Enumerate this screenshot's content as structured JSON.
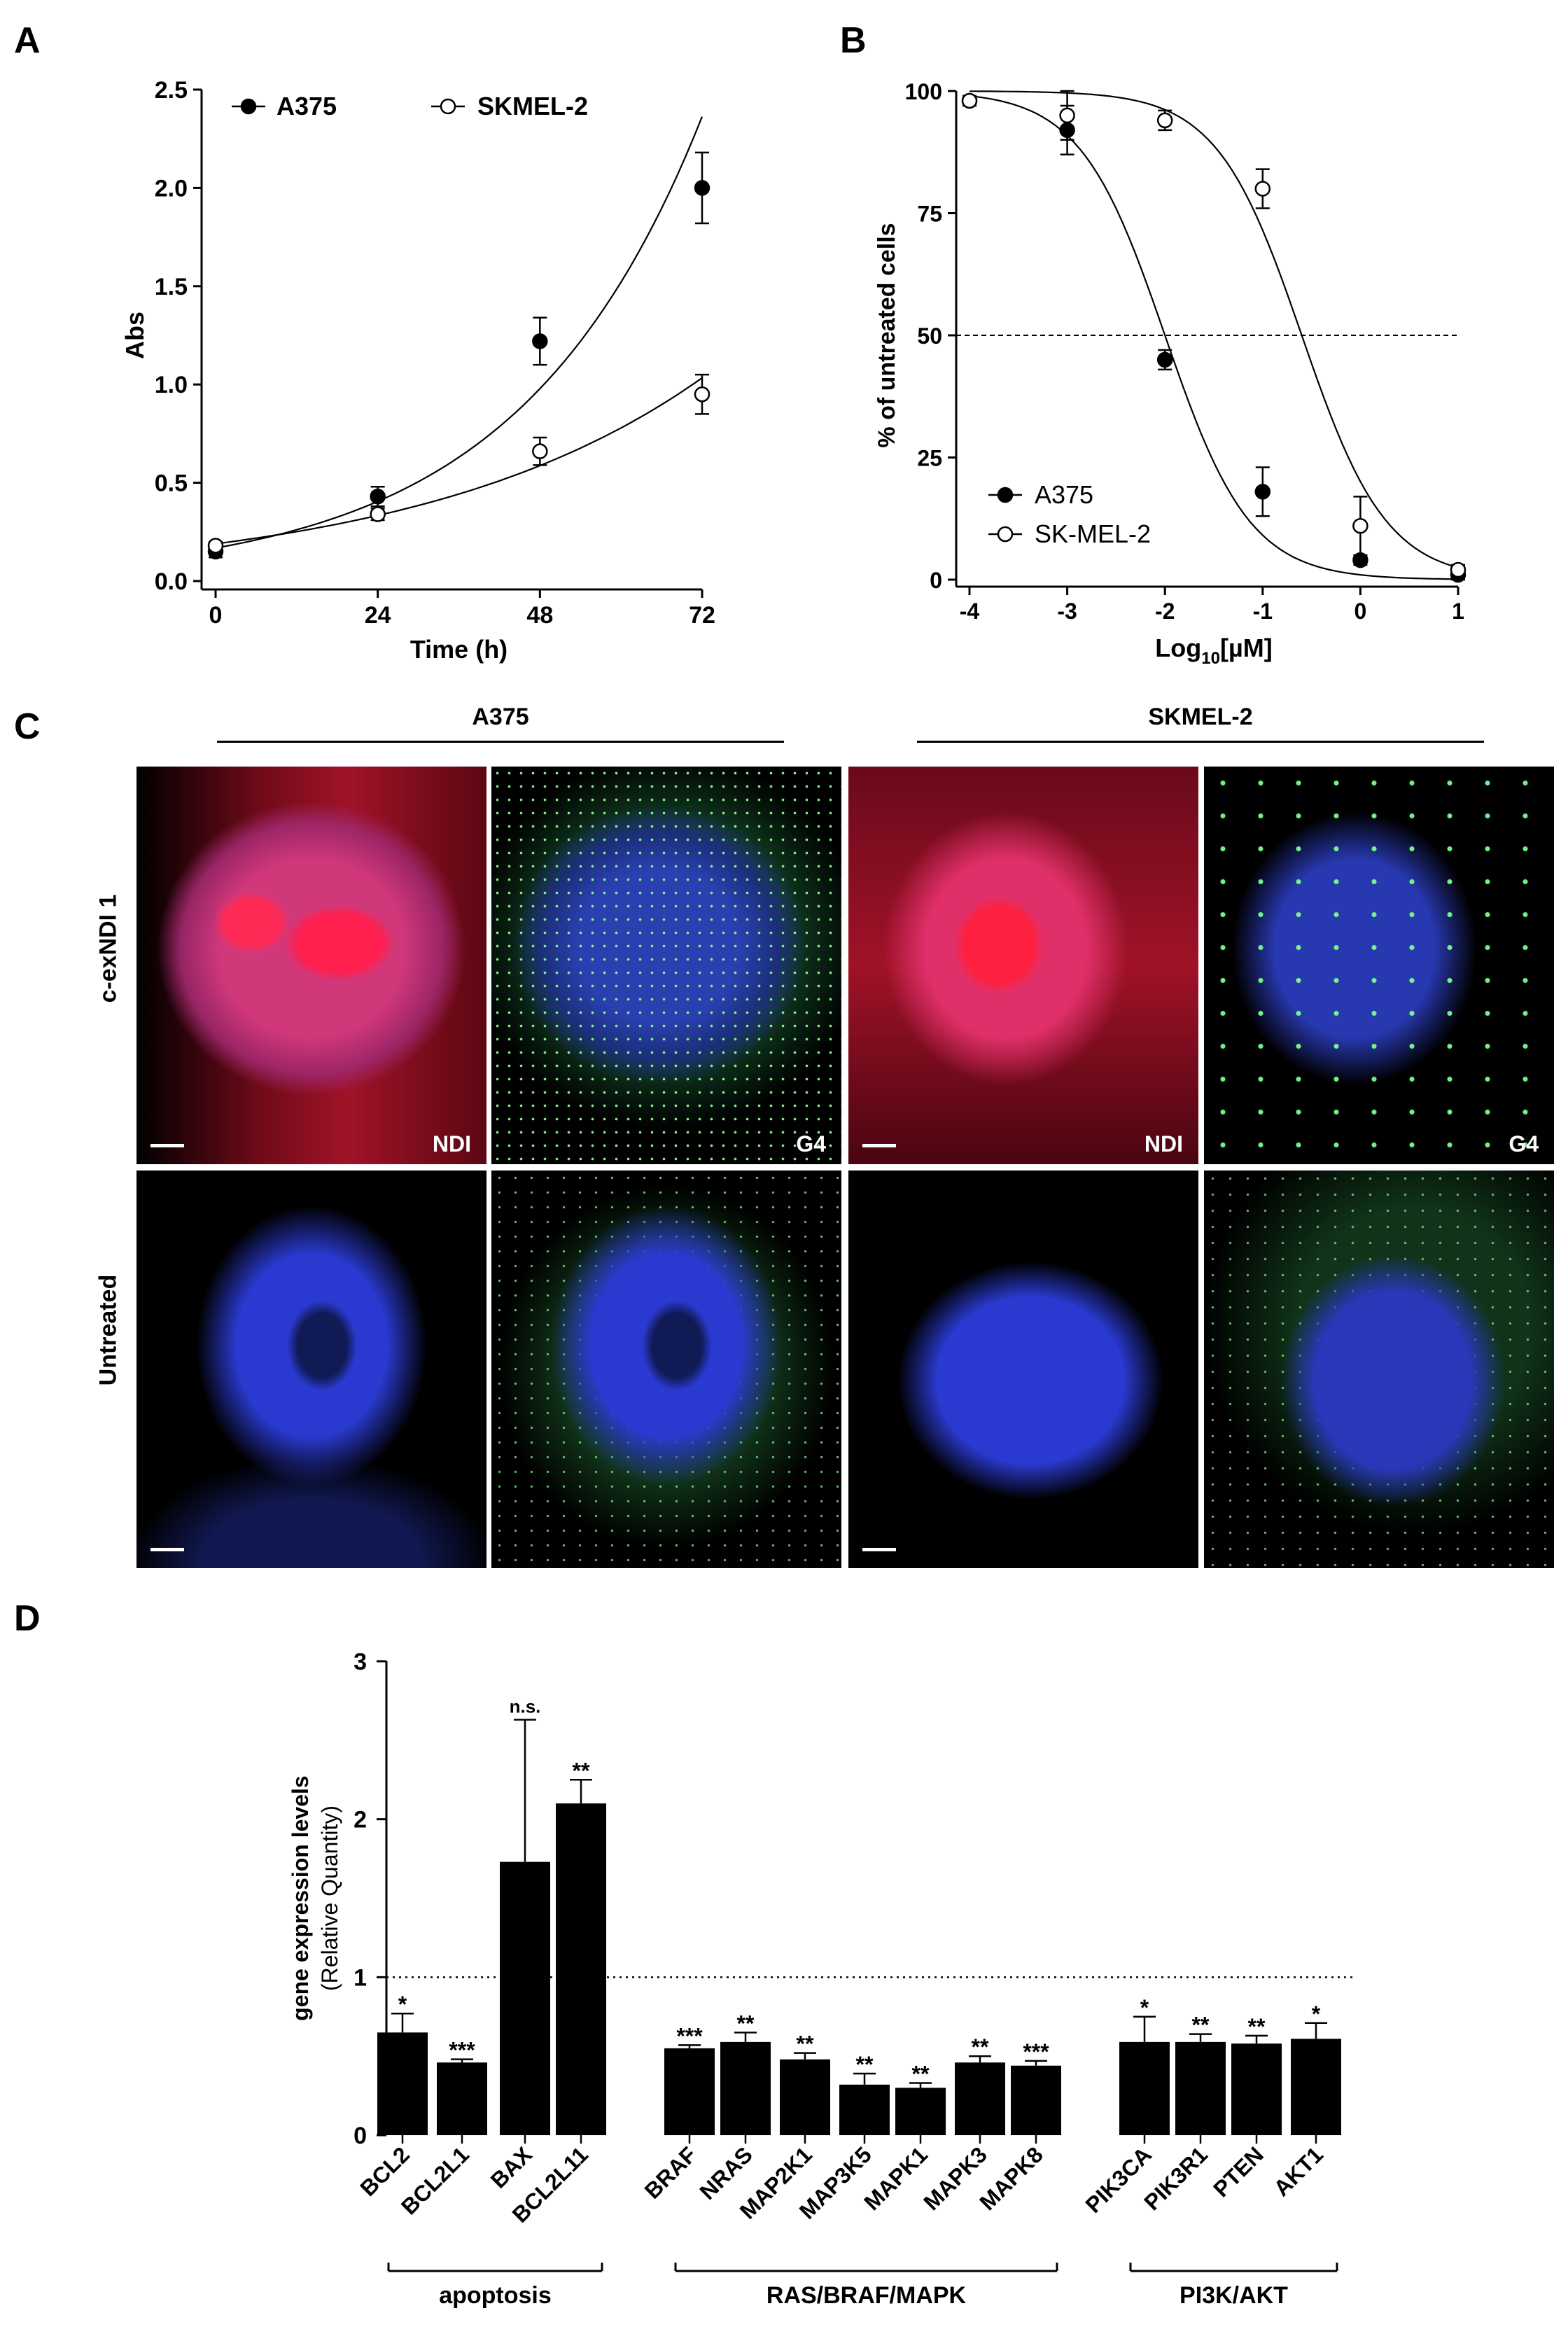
{
  "panel_letters": [
    "A",
    "B",
    "C",
    "D"
  ],
  "panel_c": {
    "groups": [
      "A375",
      "SKMEL-2"
    ],
    "rows": [
      "c-exNDI 1",
      "Untreated"
    ],
    "image_labels": {
      "ndi": "NDI",
      "g4": "G4"
    }
  },
  "chart_data": [
    {
      "panel": "A",
      "type": "scatter",
      "xlabel": "Time (h)",
      "ylabel": "Abs",
      "xlim": [
        0,
        72
      ],
      "ylim": [
        0,
        2.5
      ],
      "xticks": [
        "0",
        "24",
        "48",
        "72"
      ],
      "yticks": [
        "0.0",
        "0.5",
        "1.0",
        "1.5",
        "2.0",
        "2.5"
      ],
      "legend_position": "top",
      "series": [
        {
          "name": "A375",
          "marker": "filled",
          "x": [
            0,
            24,
            48,
            72
          ],
          "y": [
            0.15,
            0.43,
            1.22,
            2.0
          ],
          "err": [
            0.03,
            0.05,
            0.12,
            0.18
          ]
        },
        {
          "name": "SKMEL-2",
          "marker": "open",
          "x": [
            0,
            24,
            48,
            72
          ],
          "y": [
            0.18,
            0.34,
            0.66,
            0.95
          ],
          "err": [
            0.02,
            0.03,
            0.07,
            0.1
          ]
        }
      ]
    },
    {
      "panel": "B",
      "type": "scatter",
      "xlabel_main": "Log",
      "xlabel_sub": "10",
      "xlabel_rest": "[µM]",
      "ylabel": "% of untreated cells",
      "xlim": [
        -4,
        1
      ],
      "ylim": [
        0,
        100
      ],
      "xticks": [
        "-4",
        "-3",
        "-2",
        "-1",
        "0",
        "1"
      ],
      "yticks": [
        "0",
        "25",
        "50",
        "75",
        "100"
      ],
      "reference_line": 50,
      "legend_position": "bottom-left",
      "series": [
        {
          "name": "A375",
          "marker": "filled",
          "x": [
            -4,
            -3,
            -2,
            -1,
            0,
            1
          ],
          "y": [
            98,
            92,
            45,
            18,
            4,
            1
          ],
          "err": [
            1,
            5,
            2,
            5,
            1,
            1
          ]
        },
        {
          "name": "SK-MEL-2",
          "marker": "open",
          "x": [
            -4,
            -3,
            -2,
            -1,
            0,
            1
          ],
          "y": [
            98,
            95,
            94,
            80,
            11,
            2
          ],
          "err": [
            1,
            5,
            2,
            4,
            6,
            1
          ]
        }
      ]
    },
    {
      "panel": "D",
      "type": "bar",
      "ylabel_line1": "gene expression levels",
      "ylabel_line2": "(Relative Quantity)",
      "ylim": [
        0,
        3
      ],
      "yticks": [
        "0",
        "1",
        "2",
        "3"
      ],
      "reference_line": 1,
      "categories": [
        "BCL2",
        "BCL2L1",
        "BAX",
        "BCL2L11",
        "BRAF",
        "NRAS",
        "MAP2K1",
        "MAP3K5",
        "MAPK1",
        "MAPK3",
        "MAPK8",
        "PIK3CA",
        "PIK3R1",
        "PTEN",
        "AKT1"
      ],
      "values": [
        0.65,
        0.46,
        1.73,
        2.1,
        0.55,
        0.59,
        0.48,
        0.32,
        0.3,
        0.46,
        0.44,
        0.59,
        0.59,
        0.58,
        0.61
      ],
      "errors": [
        0.12,
        0.02,
        0.9,
        0.15,
        0.02,
        0.06,
        0.04,
        0.07,
        0.03,
        0.04,
        0.03,
        0.16,
        0.05,
        0.05,
        0.1
      ],
      "significance": [
        "*",
        "***",
        "n.s.",
        "**",
        "***",
        "**",
        "**",
        "**",
        "**",
        "**",
        "***",
        "*",
        "**",
        "**",
        "*"
      ],
      "groups": [
        {
          "name": "apoptosis",
          "start": 0,
          "end": 3
        },
        {
          "name": "RAS/BRAF/MAPK",
          "start": 4,
          "end": 10
        },
        {
          "name": "PI3K/AKT",
          "start": 11,
          "end": 14
        }
      ]
    }
  ]
}
